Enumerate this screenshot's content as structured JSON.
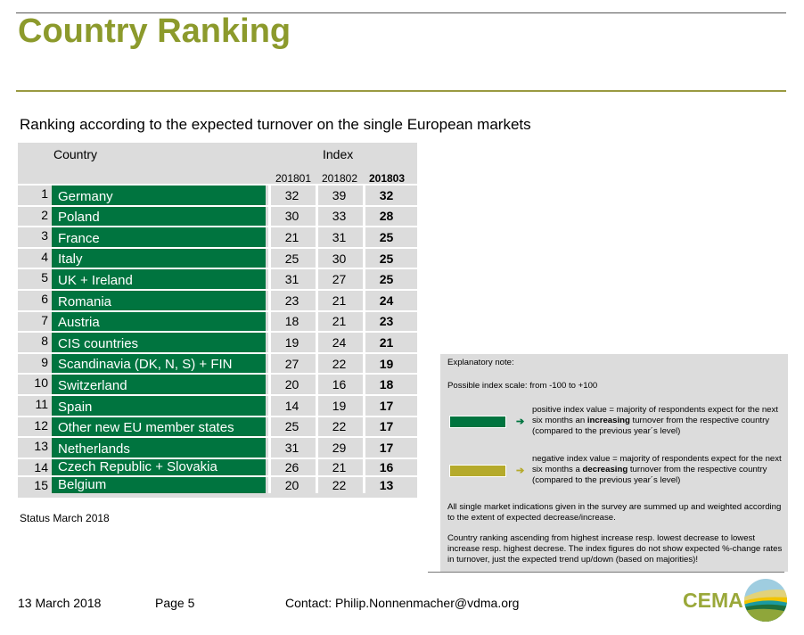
{
  "title": "Country Ranking",
  "subtitle": "Ranking according to the expected turnover on the single European markets",
  "table": {
    "country_header": "Country",
    "index_header": "Index",
    "periods": [
      "201801",
      "201802",
      "201803"
    ],
    "rows": [
      {
        "rank": "1",
        "country": "Germany",
        "v": [
          "32",
          "39",
          "32"
        ]
      },
      {
        "rank": "2",
        "country": "Poland",
        "v": [
          "30",
          "33",
          "28"
        ]
      },
      {
        "rank": "3",
        "country": "France",
        "v": [
          "21",
          "31",
          "25"
        ]
      },
      {
        "rank": "4",
        "country": "Italy",
        "v": [
          "25",
          "30",
          "25"
        ]
      },
      {
        "rank": "5",
        "country": "UK + Ireland",
        "v": [
          "31",
          "27",
          "25"
        ]
      },
      {
        "rank": "6",
        "country": "Romania",
        "v": [
          "23",
          "21",
          "24"
        ]
      },
      {
        "rank": "7",
        "country": "Austria",
        "v": [
          "18",
          "21",
          "23"
        ]
      },
      {
        "rank": "8",
        "country": "CIS countries",
        "v": [
          "19",
          "24",
          "21"
        ]
      },
      {
        "rank": "9",
        "country": "Scandinavia (DK, N, S) + FIN",
        "v": [
          "27",
          "22",
          "19"
        ]
      },
      {
        "rank": "10",
        "country": "Switzerland",
        "v": [
          "20",
          "16",
          "18"
        ]
      },
      {
        "rank": "11",
        "country": "Spain",
        "v": [
          "14",
          "19",
          "17"
        ]
      },
      {
        "rank": "12",
        "country": "Other new EU member states",
        "v": [
          "25",
          "22",
          "17"
        ]
      },
      {
        "rank": "13",
        "country": "Netherlands",
        "v": [
          "31",
          "29",
          "17"
        ]
      },
      {
        "rank": "14",
        "country": "Czech Republic + Slovakia",
        "v": [
          "26",
          "21",
          "16"
        ]
      },
      {
        "rank": "15",
        "country": "Belgium",
        "v": [
          "20",
          "22",
          "13"
        ]
      }
    ]
  },
  "status": "Status March 2018",
  "note": {
    "heading": "Explanatory note:",
    "scale": "Possible index scale: from -100 to +100",
    "positive": {
      "pre": "positive index value = majority of respondents expect for the next six months an ",
      "bold": "increasing",
      "post": " turnover from the respective country (compared to the previous year´s level)",
      "color": "#00743f"
    },
    "negative": {
      "pre": "negative index value = majority of respondents expect for the next six months a ",
      "bold": "decreasing",
      "post": " turnover from the respective country (compared to the previous year´s level)",
      "color": "#b5aa2b"
    },
    "summed": "All single market indications given in the survey are summed up and weighted according to the extent of expected decrease/increase.",
    "ranking": "Country ranking ascending from highest increase resp. lowest decrease to lowest increase resp. highest decrese. The index figures do not show expected %-change rates in turnover, just the expected trend up/down (based on majorities)!"
  },
  "footer": {
    "date": "13 March 2018",
    "page": "Page 5",
    "contact": "Contact: Philip.Nonnenmacher@vdma.org",
    "logo": "CEMA"
  }
}
